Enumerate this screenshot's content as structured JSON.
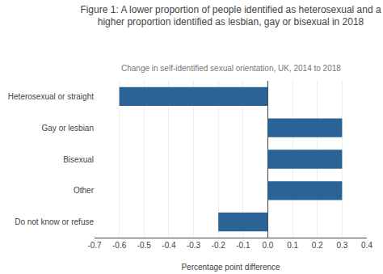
{
  "chart_data": {
    "type": "bar",
    "orientation": "horizontal",
    "title": "Figure 1: A lower proportion of people identified as heterosexual and a\nhigher proportion identified as lesbian, gay or bisexual in 2018",
    "subtitle": "Change in self-identified sexual orientation, UK, 2014 to 2018",
    "categories": [
      "Heterosexual or straight",
      "Gay or lesbian",
      "Bisexual",
      "Other",
      "Do not know or refuse"
    ],
    "values": [
      -0.6,
      0.3,
      0.3,
      0.3,
      -0.2
    ],
    "color": "#2a6496",
    "xlabel": "Percentage point difference",
    "xlim": [
      -0.7,
      0.4
    ],
    "xticks": [
      -0.7,
      -0.6,
      -0.5,
      -0.4,
      -0.3,
      -0.2,
      -0.1,
      {
        "value": 0,
        "label": "0.0"
      },
      0.1,
      0.2,
      0.3,
      0.4
    ],
    "grid": true
  }
}
